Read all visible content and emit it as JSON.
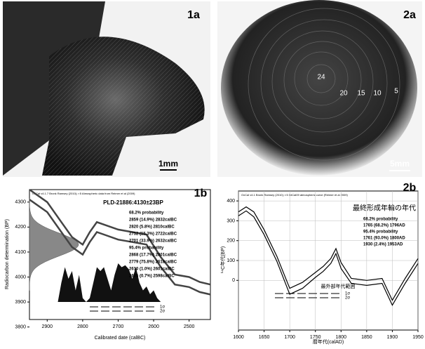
{
  "panels": {
    "p1a": {
      "label": "1a",
      "scale": "1mm"
    },
    "p2a": {
      "label": "2a",
      "scale": "5mm",
      "rings": [
        "24",
        "20",
        "15",
        "10",
        "5"
      ]
    },
    "p1b": {
      "label": "1b",
      "header": "OxCal v4.1.7 Bronk Ramsey (2010); r:5 Atmospheric data from Reimer et al (2009)",
      "title": "PLD-21886:4130±23BP",
      "measurement": [
        4130,
        23
      ],
      "lines": [
        "68.2% probability",
        "2859 (14.9%) 2832calBC",
        "2820 (5.8%) 2810calBC",
        "2752 (15.3%) 2722calBC",
        "2701 (33.9%) 2632calBC",
        "95.4% probability",
        "2868 (17.7%) 2801calBC",
        "2779 (75.8%) 2618calBC",
        "2610 (1.0%) 2601calBC",
        "2605 (0.7%) 2598calBC"
      ],
      "sigma": [
        "1σ",
        "2σ"
      ],
      "x_label": "Calibrated date (calBC)",
      "y_label": "Radiocarbon determination (BP)",
      "xlim": [
        2950,
        2440
      ],
      "ylim": [
        3830,
        4350
      ],
      "xticks": [
        2900,
        2800,
        2700,
        2600,
        2500
      ],
      "yticks": [
        4300,
        4200,
        4100,
        4000,
        3900,
        3800
      ],
      "curve": {
        "x": [
          2950,
          2900,
          2860,
          2830,
          2800,
          2780,
          2760,
          2740,
          2700,
          2660,
          2620,
          2580,
          2540,
          2500,
          2470,
          2440
        ],
        "upper": [
          4350,
          4300,
          4220,
          4160,
          4130,
          4180,
          4220,
          4210,
          4190,
          4180,
          4170,
          4080,
          4010,
          4000,
          3980,
          3970
        ],
        "lower": [
          4310,
          4260,
          4180,
          4120,
          4090,
          4140,
          4180,
          4170,
          4150,
          4140,
          4130,
          4040,
          3970,
          3960,
          3940,
          3930
        ]
      },
      "probability": {
        "x": [
          2870,
          2860,
          2850,
          2840,
          2830,
          2820,
          2810,
          2800,
          2790,
          2780,
          2770,
          2760,
          2750,
          2740,
          2730,
          2720,
          2710,
          2700,
          2690,
          2680,
          2670,
          2660,
          2650,
          2640,
          2630,
          2620,
          2610,
          2600,
          2590,
          2580
        ],
        "values": [
          0,
          0.5,
          0.9,
          0.6,
          0.8,
          0.3,
          0.7,
          0.1,
          0,
          0.1,
          0.5,
          0.9,
          0.8,
          0.9,
          0.6,
          0.3,
          0.7,
          1,
          0.9,
          0.95,
          0.85,
          0.6,
          0.9,
          0.5,
          0.3,
          0.4,
          0.2,
          0.3,
          0.1,
          0
        ]
      }
    },
    "p2b": {
      "label": "2b",
      "header": "OxCal v4.1 Bronk Ramsey (2010); r:5 IntCal09 atmospheric curve (Reimer et al 2009)",
      "title": "最終形成年輪の年代",
      "lines": [
        "68.2% probability",
        "1765 (68.2%) 1796AD",
        "95.4% probability",
        "1761 (93.0%) 1800AD",
        "1930 (2.4%) 1953AD"
      ],
      "annotation": "最外部年代範囲",
      "sigma": [
        "1σ",
        "2σ"
      ],
      "x_label": "暦年代(calAD)",
      "y_label": "¹⁴C年代(BP)",
      "xlim": [
        1600,
        1950
      ],
      "ylim": [
        -250,
        450
      ],
      "xticks": [
        1600,
        1650,
        1700,
        1750,
        1800,
        1850,
        1900,
        1950
      ],
      "yticks": [
        400,
        300,
        200,
        100,
        0
      ],
      "curve": {
        "x": [
          1600,
          1615,
          1630,
          1650,
          1675,
          1700,
          1725,
          1750,
          1765,
          1780,
          1790,
          1800,
          1820,
          1850,
          1880,
          1900,
          1925,
          1950
        ],
        "upper": [
          345,
          370,
          345,
          255,
          120,
          -40,
          -10,
          40,
          70,
          110,
          160,
          90,
          10,
          0,
          10,
          -100,
          10,
          110
        ],
        "lower": [
          325,
          350,
          320,
          230,
          95,
          -70,
          -40,
          15,
          45,
          85,
          135,
          60,
          -15,
          -25,
          -15,
          -125,
          -15,
          85
        ]
      }
    }
  }
}
